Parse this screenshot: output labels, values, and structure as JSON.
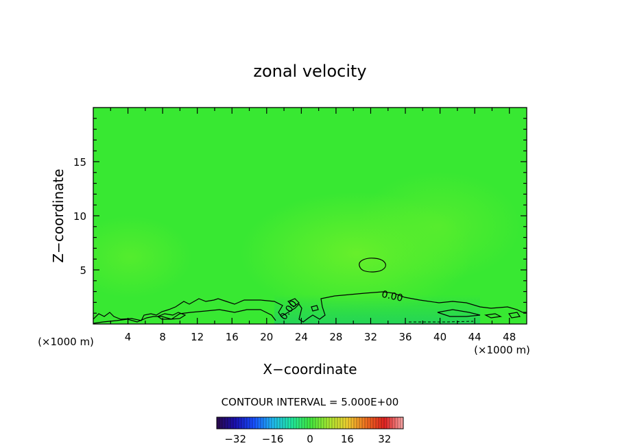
{
  "chart_data": {
    "type": "contour",
    "title": "zonal velocity",
    "xlabel": "X−coordinate",
    "ylabel": "Z−coordinate",
    "x_unit_left": "(×1000 m)",
    "x_unit_right": "(×1000 m)",
    "xlim": [
      0,
      50
    ],
    "ylim": [
      0,
      20
    ],
    "x_ticks": [
      4,
      8,
      12,
      16,
      20,
      24,
      28,
      32,
      36,
      40,
      44,
      48
    ],
    "x_tick_labels": [
      "4",
      "8",
      "12",
      "16",
      "20",
      "24",
      "28",
      "32",
      "36",
      "40",
      "44",
      "48"
    ],
    "y_ticks": [
      5,
      10,
      15
    ],
    "y_tick_labels": [
      "5",
      "10",
      "15"
    ],
    "field_background_value": 0,
    "contour_labels": [
      {
        "text": "0.00",
        "x": 34.5,
        "z": 2.6
      },
      {
        "text": "0.00",
        "x": 22.5,
        "z": 1.3
      }
    ],
    "contour_interval_text": "CONTOUR INTERVAL = 5.000E+00",
    "colorbar": {
      "min": -40,
      "max": 40,
      "ticks": [
        -32,
        -16,
        0,
        16,
        32
      ],
      "tick_labels": [
        "−32",
        "−16",
        "0",
        "16",
        "32"
      ]
    },
    "colors": {
      "field_base": "#30e830",
      "field_light": "#58ee2a",
      "field_dark": "#22d64a",
      "contour": "#000000",
      "colorbar_stops": [
        "#2a0a4a",
        "#1a10b0",
        "#1850ff",
        "#20b8f0",
        "#20e8a0",
        "#40e840",
        "#a8e830",
        "#f0d030",
        "#f07020",
        "#e02020",
        "#f8a8a8"
      ]
    }
  }
}
